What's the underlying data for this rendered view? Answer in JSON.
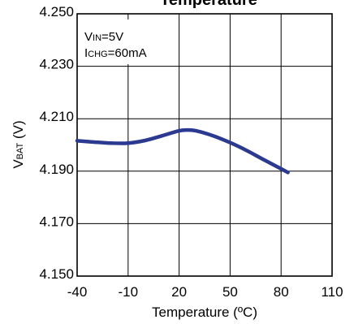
{
  "chart_data": {
    "type": "line",
    "title": "Temperature",
    "xlabel": "Temperature (ºC)",
    "ylabel": {
      "main": "V",
      "sub": "BAT",
      "rest": " (V)"
    },
    "xlim": [
      -40,
      110
    ],
    "ylim": [
      4.15,
      4.25
    ],
    "x_ticks": [
      -40,
      -10,
      20,
      50,
      80,
      110
    ],
    "x_tick_labels": [
      "-40",
      "-10",
      "20",
      "50",
      "80",
      "110"
    ],
    "y_ticks": [
      4.15,
      4.17,
      4.19,
      4.21,
      4.23,
      4.25
    ],
    "y_tick_labels": [
      "4.150",
      "4.170",
      "4.190",
      "4.210",
      "4.230",
      "4.250"
    ],
    "grid": true,
    "annotations": [
      {
        "main": "V",
        "sub": "IN",
        "rest": "=5V"
      },
      {
        "main": "I",
        "sub": "CHG",
        "rest": "=60mA"
      }
    ],
    "series": [
      {
        "color": "#2b3990",
        "x": [
          -40,
          -30,
          -20,
          -10,
          0,
          10,
          20,
          25,
          30,
          40,
          50,
          60,
          70,
          80,
          84
        ],
        "y": [
          4.2016,
          4.2011,
          4.2007,
          4.2007,
          4.2017,
          4.2035,
          4.2054,
          4.2057,
          4.2054,
          4.2035,
          4.2009,
          4.1978,
          4.1943,
          4.1909,
          4.1895
        ]
      }
    ]
  }
}
